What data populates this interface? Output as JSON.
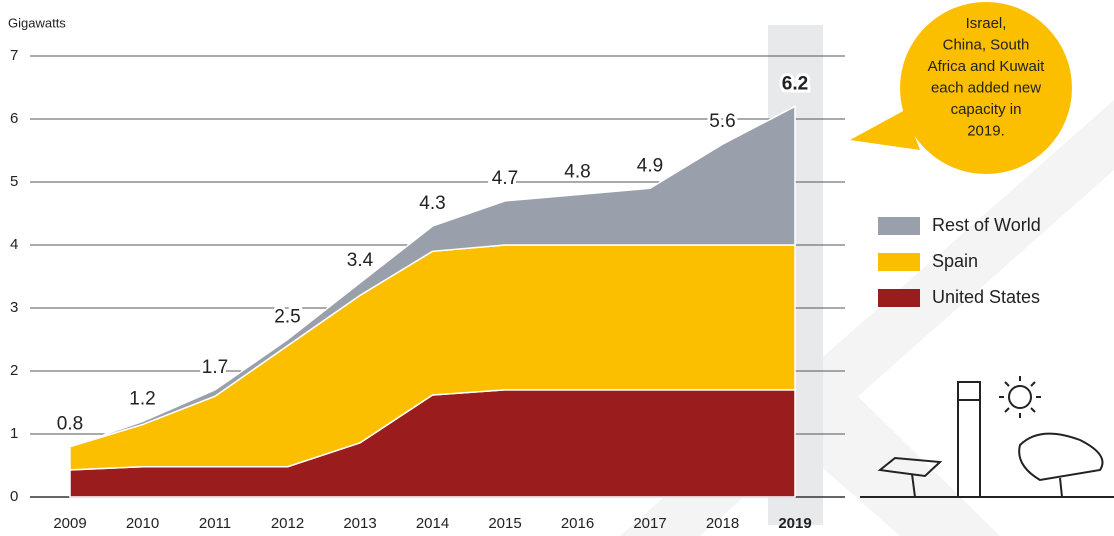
{
  "chart_data": {
    "type": "stacked_area",
    "y_label": "Gigawatts",
    "categories": [
      "2009",
      "2010",
      "2011",
      "2012",
      "2013",
      "2014",
      "2015",
      "2016",
      "2017",
      "2018",
      "2019"
    ],
    "series": [
      {
        "name": "United States",
        "color": "#9b1c1c",
        "values": [
          0.43,
          0.48,
          0.48,
          0.48,
          0.86,
          1.62,
          1.7,
          1.7,
          1.7,
          1.7,
          1.7
        ]
      },
      {
        "name": "Spain",
        "color": "#fbbf00",
        "values": [
          0.37,
          0.67,
          1.12,
          1.92,
          2.34,
          2.28,
          2.3,
          2.3,
          2.3,
          2.3,
          2.3
        ]
      },
      {
        "name": "Rest of World",
        "color": "#9aa0ab",
        "values": [
          0,
          0.05,
          0.1,
          0.1,
          0.2,
          0.4,
          0.7,
          0.8,
          0.9,
          1.6,
          2.2
        ]
      }
    ],
    "totals": [
      0.8,
      1.2,
      1.7,
      2.5,
      3.4,
      4.3,
      4.7,
      4.8,
      4.9,
      5.6,
      6.2
    ],
    "ylim": [
      0,
      7
    ],
    "yticks": [
      0,
      1,
      2,
      3,
      4,
      5,
      6,
      7
    ],
    "grid": true,
    "annotation_lines": [
      "Israel,",
      "China, South",
      "Africa and Kuwait",
      "each added new",
      "capacity in",
      "2019."
    ],
    "annotation_color": "#fbbf00"
  }
}
